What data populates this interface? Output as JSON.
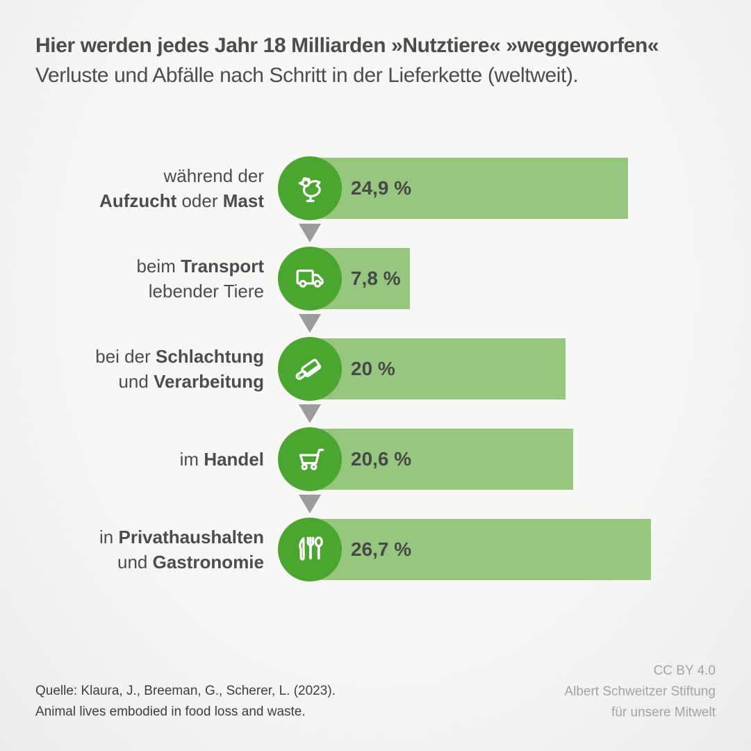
{
  "title": {
    "line1": "Hier werden jedes Jahr 18 Milliarden »Nutztiere« »weggeworfen«",
    "line2": "Verluste und Abfälle nach Schritt in der Lieferkette (weltweit)."
  },
  "chart_data": {
    "type": "bar",
    "orientation": "horizontal",
    "unit": "%",
    "categories": [
      "während der Aufzucht oder Mast",
      "beim Transport lebender Tiere",
      "bei der Schlachtung und Verarbeitung",
      "im Handel",
      "in Privathaushalten und Gastronomie"
    ],
    "values": [
      24.9,
      7.8,
      20,
      20.6,
      26.7
    ],
    "value_labels": [
      "24,9 %",
      "7,8 %",
      "20 %",
      "20,6 %",
      "26,7 %"
    ],
    "icons": [
      "chicken-icon",
      "truck-icon",
      "cleaver-icon",
      "shopping-cart-icon",
      "cutlery-icon"
    ],
    "xlim": [
      0,
      30
    ],
    "gridlines": false,
    "legend": false,
    "colors": {
      "bar": "#97C77F",
      "icon_circle": "#4BA62F",
      "arrow": "#9B9B9B",
      "text": "#4c4c4e",
      "background": "#f3f3f2"
    }
  },
  "rows": [
    {
      "l1a": "während der",
      "l2a": "Aufzucht",
      "l2b": " oder ",
      "l2c": "Mast",
      "value": "24,9 %"
    },
    {
      "l1a": "beim ",
      "l1b": "Transport",
      "l2a": "lebender Tiere",
      "value": "7,8 %"
    },
    {
      "l1a": "bei der ",
      "l1b": "Schlachtung",
      "l2a": "und ",
      "l2b": "Verarbeitung",
      "value": "20 %"
    },
    {
      "l1a": "im ",
      "l1b": "Handel",
      "value": "20,6 %"
    },
    {
      "l1a": "in ",
      "l1b": "Privathaushalten",
      "l2a": "und ",
      "l2b": "Gastronomie",
      "value": "26,7 %"
    }
  ],
  "footer": {
    "source_line1": "Quelle: Klaura, J., Breeman, G., Scherer, L. (2023).",
    "source_line2": "Animal lives embodied in food loss and waste.",
    "license": "CC BY 4.0",
    "org_line1": "Albert Schweitzer Stiftung",
    "org_line2": "für unsere Mitwelt"
  }
}
